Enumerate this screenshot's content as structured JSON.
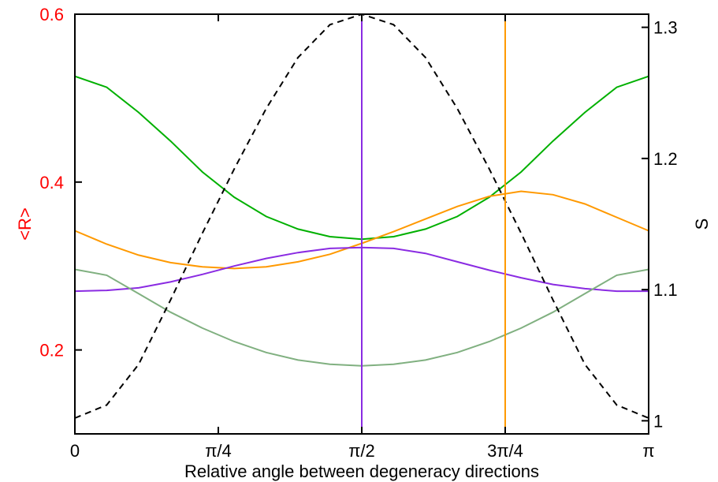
{
  "chart_data": {
    "type": "line",
    "xlabel": "Relative angle between degeneracy directions",
    "ylabel_left": "<R>",
    "ylabel_right": "S",
    "xlim": [
      0,
      3.14159
    ],
    "ylim_left": [
      0.1,
      0.6
    ],
    "ylim_right": [
      0.99,
      1.31
    ],
    "xticks": [
      {
        "value": 0,
        "label": "0"
      },
      {
        "value": 0.7854,
        "label": "π/4"
      },
      {
        "value": 1.5708,
        "label": "π/2"
      },
      {
        "value": 2.3562,
        "label": "3π/4"
      },
      {
        "value": 3.1416,
        "label": "π"
      }
    ],
    "yticks_left": [
      {
        "value": 0.2,
        "label": "0.2"
      },
      {
        "value": 0.4,
        "label": "0.4"
      },
      {
        "value": 0.6,
        "label": "0.6"
      }
    ],
    "yticks_right": [
      {
        "value": 1.0,
        "label": "1"
      },
      {
        "value": 1.1,
        "label": "1.1"
      },
      {
        "value": 1.2,
        "label": "1.2"
      },
      {
        "value": 1.3,
        "label": "1.3"
      }
    ],
    "colors": {
      "left_axis": "#ff0000",
      "right_axis": "#000000",
      "frame": "#000000"
    },
    "x": [
      0,
      0.1745,
      0.3491,
      0.5236,
      0.6981,
      0.8727,
      1.0472,
      1.2217,
      1.3963,
      1.5708,
      1.7453,
      1.9199,
      2.0944,
      2.2689,
      2.4435,
      2.618,
      2.7925,
      2.967,
      3.1416
    ],
    "series": [
      {
        "axis": "left",
        "color": "#00b000",
        "dash": "",
        "values": [
          0.526,
          0.513,
          0.483,
          0.449,
          0.412,
          0.382,
          0.359,
          0.344,
          0.335,
          0.332,
          0.335,
          0.344,
          0.359,
          0.382,
          0.412,
          0.449,
          0.483,
          0.513,
          0.526
        ]
      },
      {
        "axis": "left",
        "color": "#ff9900",
        "dash": "",
        "values": [
          0.342,
          0.326,
          0.313,
          0.304,
          0.299,
          0.297,
          0.299,
          0.305,
          0.314,
          0.327,
          0.341,
          0.356,
          0.371,
          0.383,
          0.389,
          0.385,
          0.374,
          0.358,
          0.342
        ]
      },
      {
        "axis": "left",
        "color": "#8a2be2",
        "dash": "",
        "values": [
          0.27,
          0.271,
          0.274,
          0.281,
          0.29,
          0.3,
          0.309,
          0.316,
          0.321,
          0.322,
          0.321,
          0.315,
          0.305,
          0.295,
          0.286,
          0.278,
          0.273,
          0.27,
          0.27
        ]
      },
      {
        "axis": "left",
        "color": "#80b080",
        "dash": "",
        "values": [
          0.296,
          0.289,
          0.267,
          0.245,
          0.226,
          0.21,
          0.197,
          0.188,
          0.183,
          0.181,
          0.183,
          0.188,
          0.197,
          0.21,
          0.226,
          0.245,
          0.267,
          0.289,
          0.296
        ]
      },
      {
        "axis": "right",
        "color": "#000000",
        "dash": "8,6",
        "values": [
          1.002,
          1.012,
          1.043,
          1.092,
          1.143,
          1.192,
          1.238,
          1.277,
          1.302,
          1.31,
          1.302,
          1.277,
          1.238,
          1.192,
          1.143,
          1.092,
          1.043,
          1.012,
          1.002
        ]
      }
    ],
    "vlines": [
      {
        "x": 0,
        "color": "#00b000"
      },
      {
        "x": 1.5708,
        "color": "#8a2be2"
      },
      {
        "x": 2.3562,
        "color": "#ff9900"
      }
    ]
  }
}
